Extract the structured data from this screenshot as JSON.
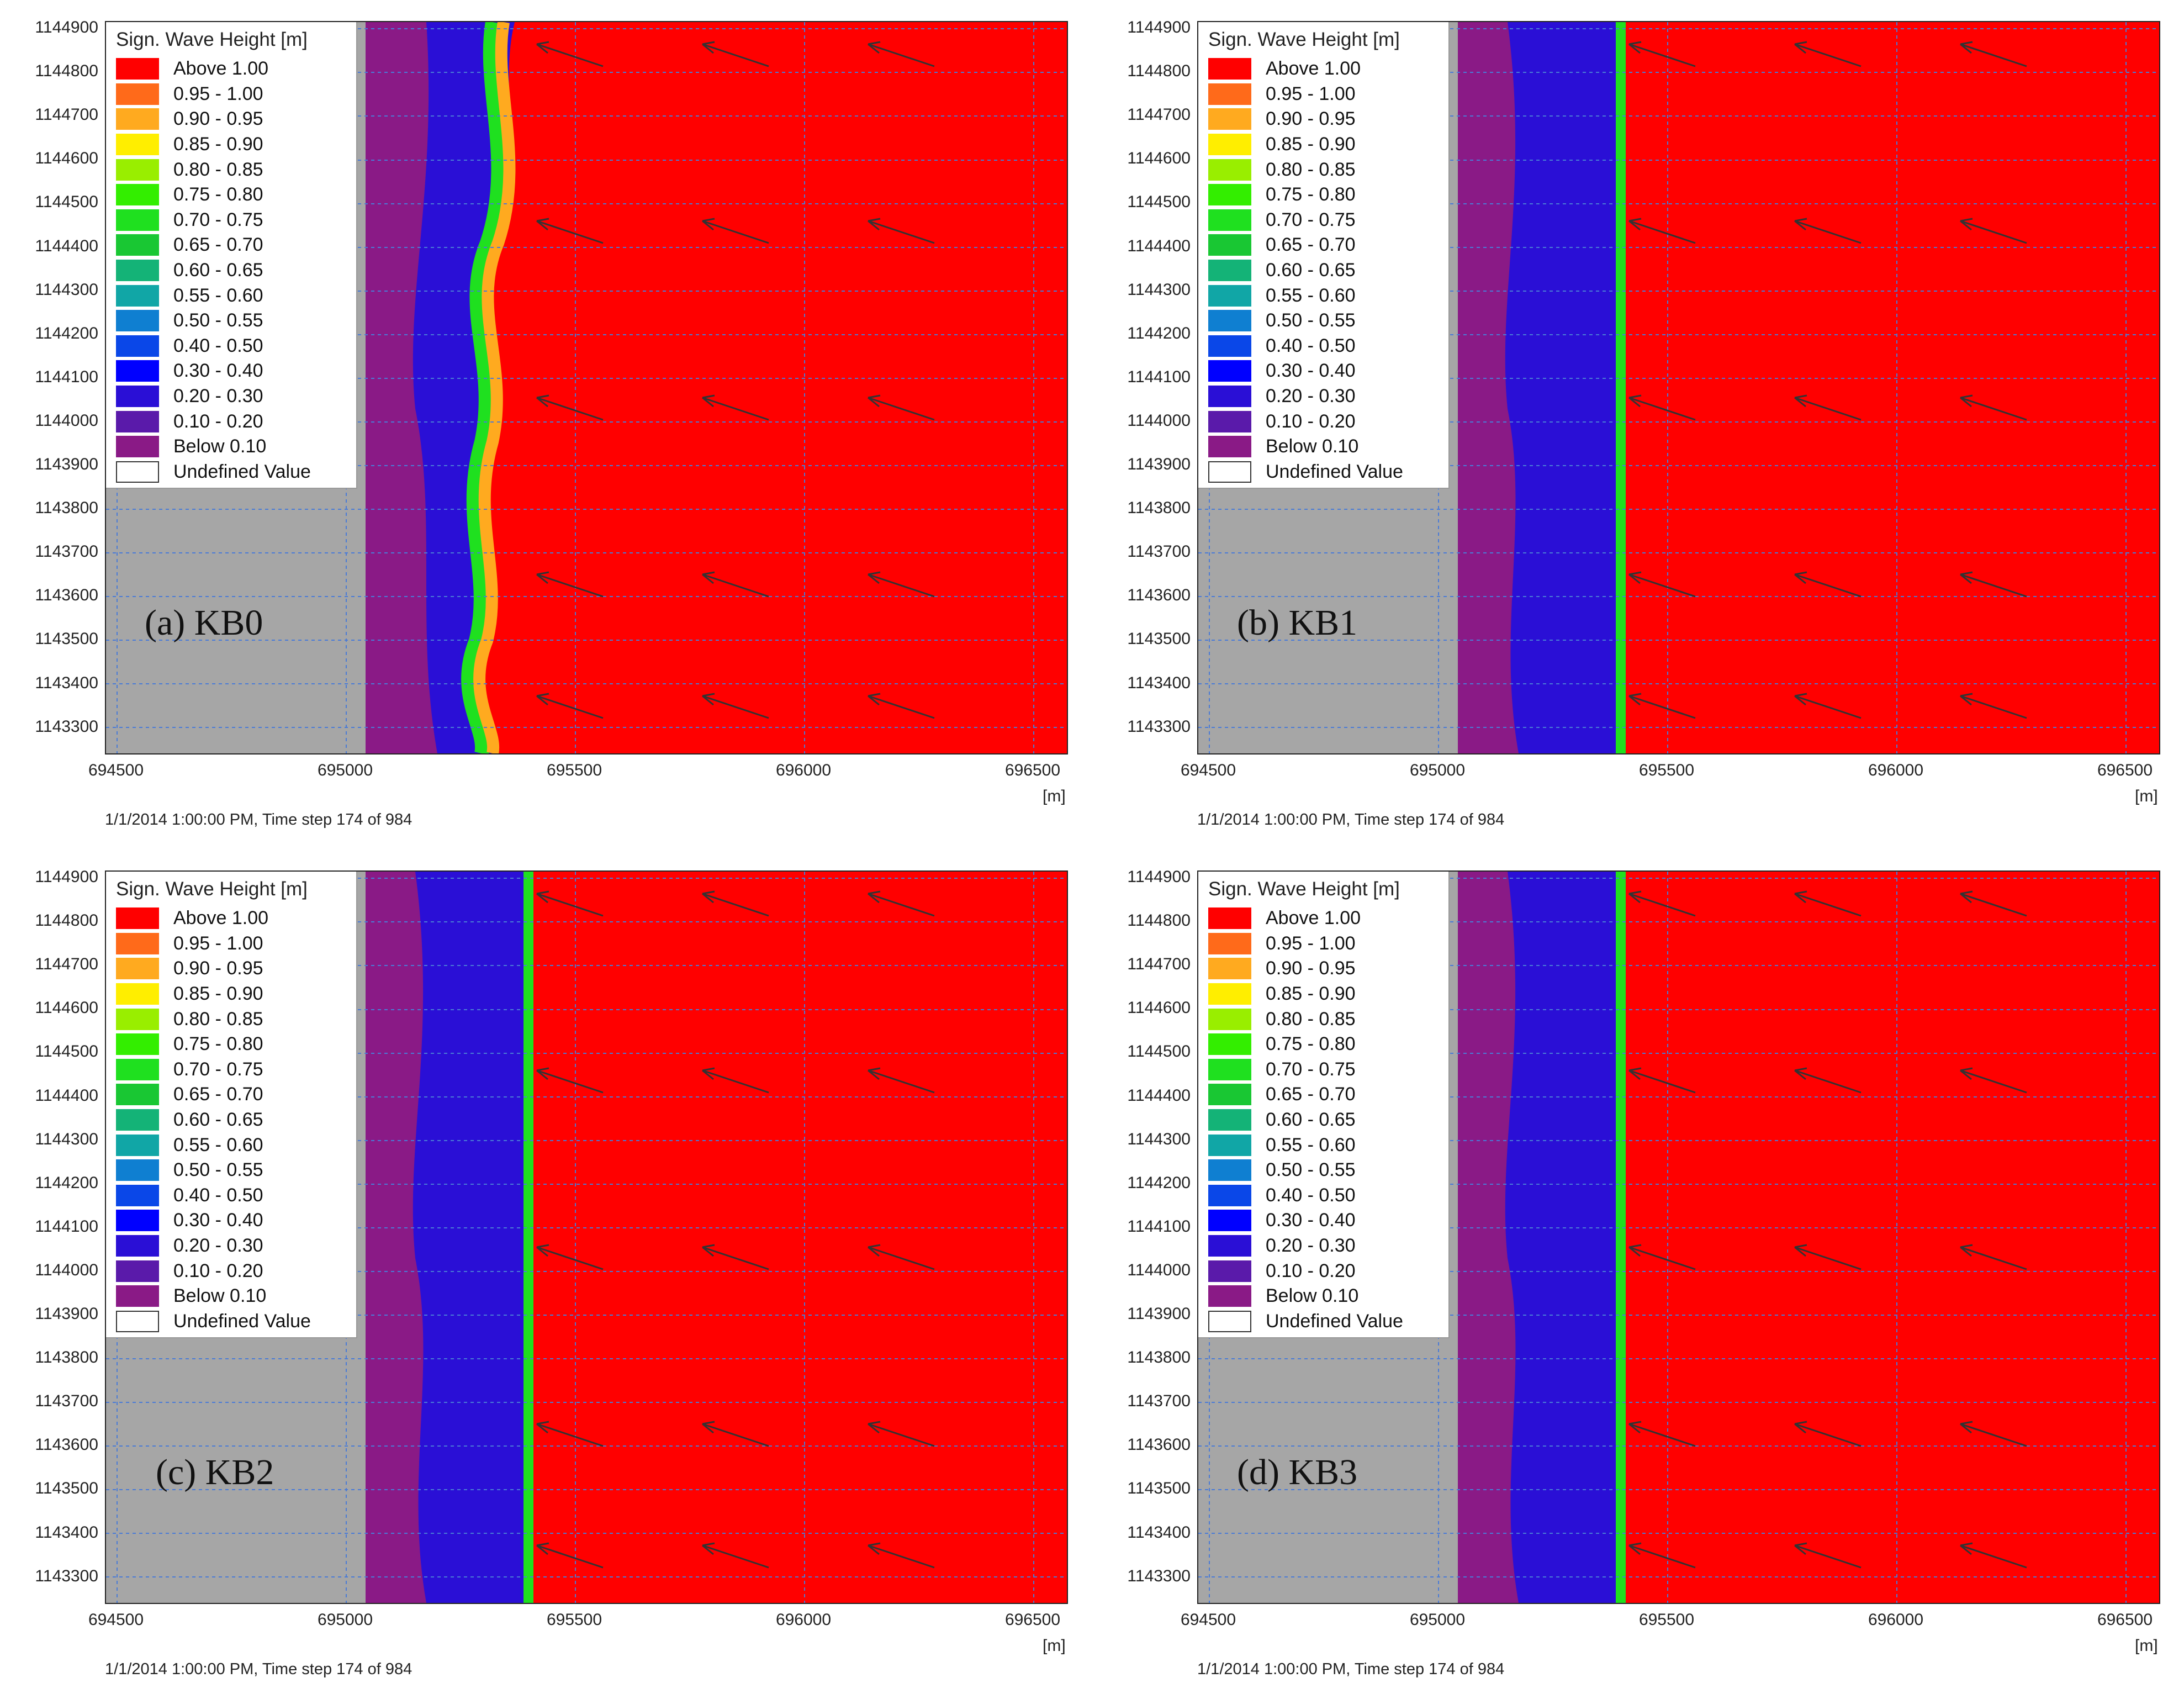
{
  "legend": {
    "title": "Sign. Wave Height [m]",
    "items": [
      {
        "label": "Above 1.00",
        "color": "#ff0000"
      },
      {
        "label": "0.95 - 1.00",
        "color": "#ff6a1a"
      },
      {
        "label": "0.90 - 0.95",
        "color": "#ffaa1f"
      },
      {
        "label": "0.85 - 0.90",
        "color": "#ffee00"
      },
      {
        "label": "0.80 - 0.85",
        "color": "#99ee00"
      },
      {
        "label": "0.75 - 0.80",
        "color": "#33ee00"
      },
      {
        "label": "0.70 - 0.75",
        "color": "#1fe01f"
      },
      {
        "label": "0.65 - 0.70",
        "color": "#19c733"
      },
      {
        "label": "0.60 - 0.65",
        "color": "#14b377"
      },
      {
        "label": "0.55 - 0.60",
        "color": "#11a6a6"
      },
      {
        "label": "0.50 - 0.55",
        "color": "#0f7fd1"
      },
      {
        "label": "0.40 - 0.50",
        "color": "#0a47e8"
      },
      {
        "label": "0.30 - 0.40",
        "color": "#0000ff"
      },
      {
        "label": "0.20 - 0.30",
        "color": "#2a0fd6"
      },
      {
        "label": "0.10 - 0.20",
        "color": "#5a1aaa"
      },
      {
        "label": "Below 0.10",
        "color": "#8a1a86"
      },
      {
        "label": "Undefined Value",
        "color": "#ffffff"
      }
    ]
  },
  "axes": {
    "y_ticks": [
      "1144900",
      "1144800",
      "1144700",
      "1144600",
      "1144500",
      "1144400",
      "1144300",
      "1144200",
      "1144100",
      "1144000",
      "1143900",
      "1143800",
      "1143700",
      "1143600",
      "1143500",
      "1143400",
      "1143300"
    ],
    "x_ticks": [
      "694500",
      "695000",
      "695500",
      "696000",
      "696500"
    ],
    "x_unit": "[m]"
  },
  "colors": {
    "sea": "#ff0000",
    "land": "#a6a6a6",
    "grid": "#4a7bd6",
    "arrow": "#333333"
  },
  "footer": "1/1/2014 1:00:00 PM, Time step 174 of 984",
  "panels": [
    {
      "label": "(a) KB0"
    },
    {
      "label": "(b) KB1"
    },
    {
      "label": "(c) KB2"
    },
    {
      "label": "(d) KB3"
    }
  ]
}
